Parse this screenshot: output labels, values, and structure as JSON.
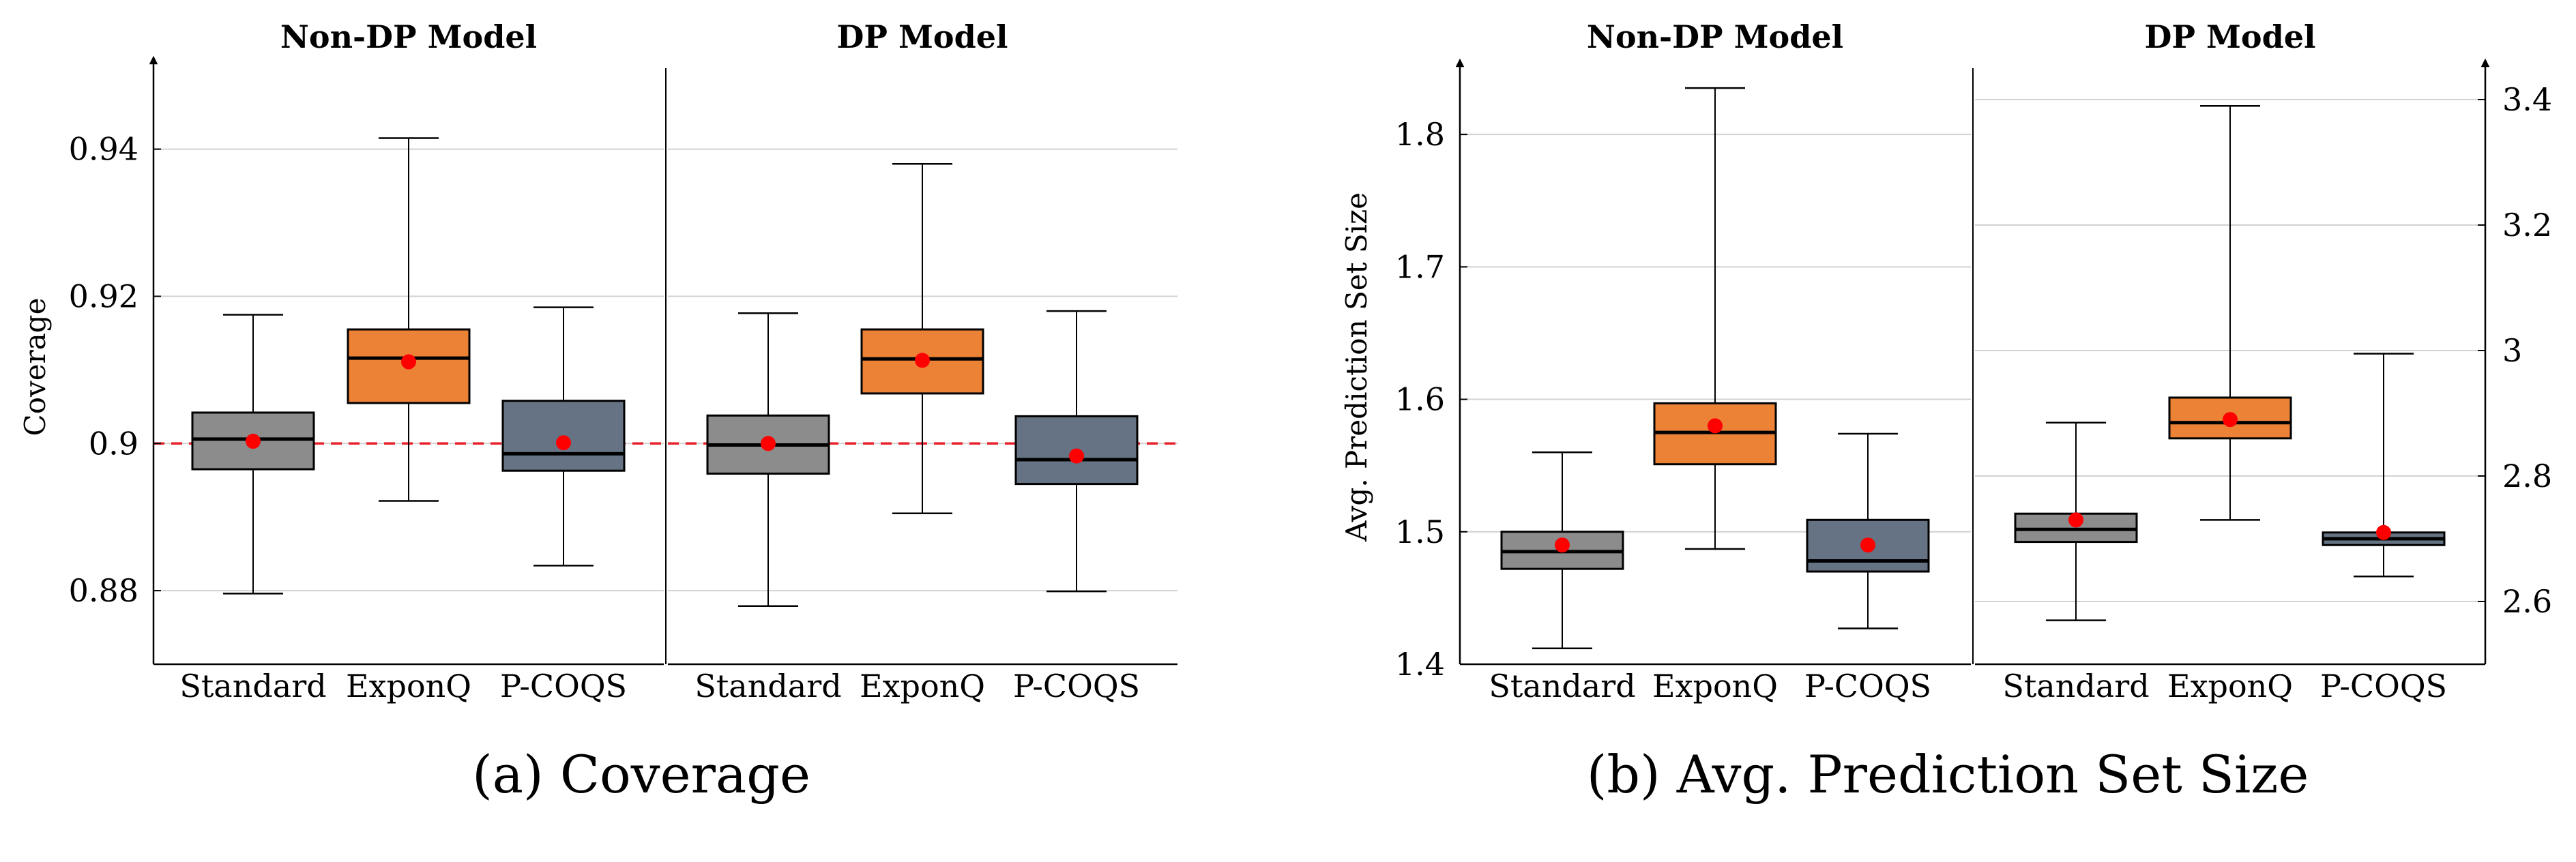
{
  "colors": {
    "standard": "#8c8c8c",
    "exponq": "#ec8236",
    "pcoqs": "#667384",
    "mean": "#ff0000",
    "target_line": "#e8202a",
    "grid": "#d2d2d2"
  },
  "chart_data": [
    {
      "type": "boxplot",
      "caption": "(a) Coverage",
      "ylabel": "Coverage",
      "ylim": [
        0.87,
        0.951
      ],
      "yticks": [
        0.88,
        0.9,
        0.92,
        0.94
      ],
      "ytick_labels": [
        "0.88",
        "0.9",
        "0.92",
        "0.94"
      ],
      "reference_line": 0.9,
      "grid": true,
      "categories": [
        "Standard",
        "ExponQ",
        "P-COQS"
      ],
      "panels": [
        {
          "title": "Non-DP Model",
          "boxes": [
            {
              "category": "Standard",
              "whisker_low": 0.8796,
              "q1": 0.8965,
              "median": 0.9006,
              "q3": 0.9042,
              "whisker_high": 0.9175,
              "mean": 0.9003
            },
            {
              "category": "ExponQ",
              "whisker_low": 0.8922,
              "q1": 0.9055,
              "median": 0.9116,
              "q3": 0.9155,
              "whisker_high": 0.9415,
              "mean": 0.9111
            },
            {
              "category": "P-COQS",
              "whisker_low": 0.8834,
              "q1": 0.8963,
              "median": 0.8986,
              "q3": 0.9058,
              "whisker_high": 0.9185,
              "mean": 0.9001
            }
          ]
        },
        {
          "title": "DP Model",
          "boxes": [
            {
              "category": "Standard",
              "whisker_low": 0.8779,
              "q1": 0.8959,
              "median": 0.8998,
              "q3": 0.9038,
              "whisker_high": 0.9177,
              "mean": 0.9
            },
            {
              "category": "ExponQ",
              "whisker_low": 0.8905,
              "q1": 0.9068,
              "median": 0.9115,
              "q3": 0.9155,
              "whisker_high": 0.938,
              "mean": 0.9113
            },
            {
              "category": "P-COQS",
              "whisker_low": 0.8799,
              "q1": 0.8945,
              "median": 0.8978,
              "q3": 0.9037,
              "whisker_high": 0.918,
              "mean": 0.8983
            }
          ]
        }
      ]
    },
    {
      "type": "boxplot",
      "caption": "(b) Avg. Prediction Set Size",
      "ylabel": "Avg. Prediction Set Size",
      "grid": true,
      "categories": [
        "Standard",
        "ExponQ",
        "P-COQS"
      ],
      "panels": [
        {
          "title": "Non-DP Model",
          "axis": "left",
          "ylim": [
            1.4,
            1.85
          ],
          "yticks": [
            1.4,
            1.5,
            1.6,
            1.7,
            1.8
          ],
          "ytick_labels": [
            "1.4",
            "1.5",
            "1.6",
            "1.7",
            "1.8"
          ],
          "boxes": [
            {
              "category": "Standard",
              "whisker_low": 1.412,
              "q1": 1.472,
              "median": 1.485,
              "q3": 1.5,
              "whisker_high": 1.56,
              "mean": 1.49
            },
            {
              "category": "ExponQ",
              "whisker_low": 1.487,
              "q1": 1.551,
              "median": 1.575,
              "q3": 1.597,
              "whisker_high": 1.835,
              "mean": 1.58
            },
            {
              "category": "P-COQS",
              "whisker_low": 1.427,
              "q1": 1.47,
              "median": 1.478,
              "q3": 1.509,
              "whisker_high": 1.574,
              "mean": 1.49
            }
          ]
        },
        {
          "title": "DP Model",
          "axis": "right",
          "ylim": [
            2.5,
            3.45
          ],
          "yticks": [
            2.6,
            2.8,
            3.0,
            3.2,
            3.4
          ],
          "ytick_labels": [
            "2.6",
            "2.8",
            "3",
            "3.2",
            "3.4"
          ],
          "boxes": [
            {
              "category": "Standard",
              "whisker_low": 2.57,
              "q1": 2.695,
              "median": 2.715,
              "q3": 2.74,
              "whisker_high": 2.885,
              "mean": 2.73
            },
            {
              "category": "ExponQ",
              "whisker_low": 2.73,
              "q1": 2.86,
              "median": 2.885,
              "q3": 2.925,
              "whisker_high": 3.39,
              "mean": 2.89
            },
            {
              "category": "P-COQS",
              "whisker_low": 2.64,
              "q1": 2.69,
              "median": 2.7,
              "q3": 2.71,
              "whisker_high": 2.995,
              "mean": 2.71
            }
          ]
        }
      ]
    }
  ]
}
